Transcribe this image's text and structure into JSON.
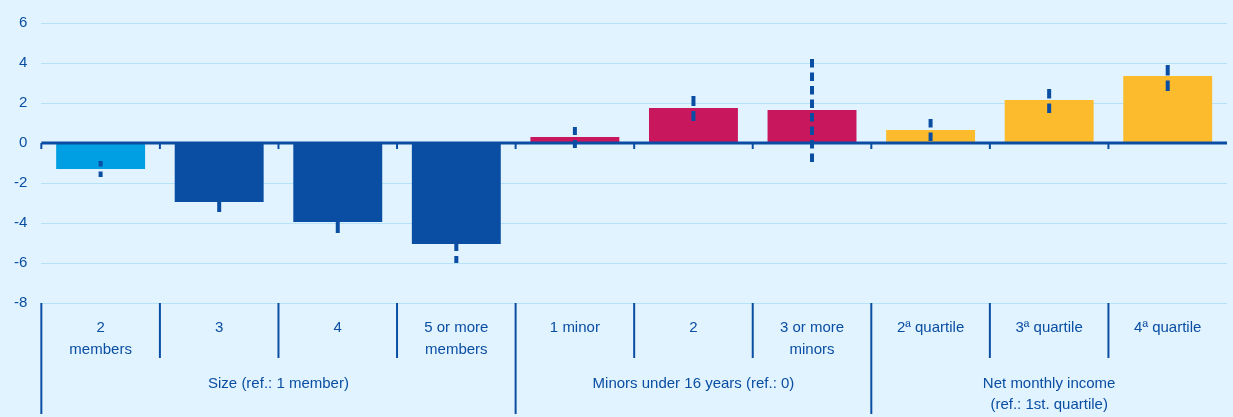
{
  "chart_data": {
    "type": "bar",
    "categories": [
      "2 members",
      "3",
      "4",
      "5 or more members",
      "1 minor",
      "2",
      "3 or more minors",
      "2ª quartile",
      "3ª quartile",
      "4ª quartile"
    ],
    "values": [
      -1.3,
      -2.95,
      -3.95,
      -5.05,
      0.3,
      1.75,
      1.65,
      0.65,
      2.15,
      3.35
    ],
    "colors": [
      "#009fe3",
      "#0a4ea3",
      "#0a4ea3",
      "#0a4ea3",
      "#c8175d",
      "#c8175d",
      "#c8175d",
      "#fbbb2d",
      "#fbbb2d",
      "#fbbb2d"
    ],
    "errors": [
      [
        -1.7,
        -0.9
      ],
      [
        -3.45,
        -2.95
      ],
      [
        -4.5,
        -3.95
      ],
      [
        -6.0,
        -5.05
      ],
      [
        -0.25,
        0.8
      ],
      [
        1.1,
        2.35
      ],
      [
        -0.95,
        4.2
      ],
      [
        0.1,
        1.2
      ],
      [
        1.5,
        2.7
      ],
      [
        2.6,
        3.9
      ]
    ],
    "annotations": [
      "Size (ref.: 1 member)",
      "Minors under 16 years (ref.: 0)",
      "Net monthly income (ref.: 1st. quartile)"
    ],
    "ref_lines": [
      {
        "axis": "y",
        "value": 0,
        "color": "#0a4ea3"
      }
    ],
    "ylim": [
      -8,
      6
    ],
    "yticks": [
      -8,
      -6,
      -4,
      -2,
      0,
      2,
      4,
      6
    ],
    "grid": "y",
    "legend": false
  }
}
